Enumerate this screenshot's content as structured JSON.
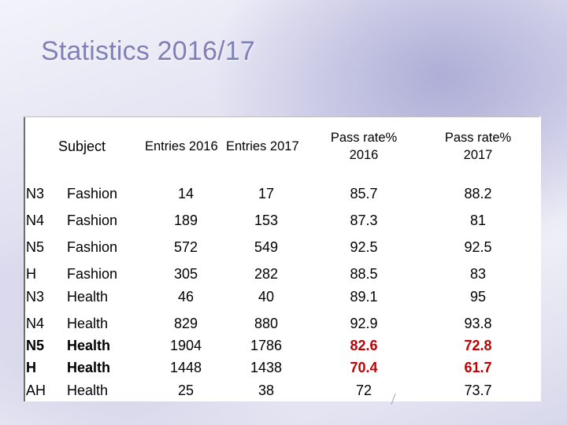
{
  "title": "Statistics 2016/17",
  "colors": {
    "title": "#8080b8",
    "highlight": "#c00000"
  },
  "table": {
    "headers": {
      "subject": "Subject",
      "entries_2016": "Entries 2016",
      "entries_2017": "Entries 2017",
      "pass_2016": "Pass rate%\n2016",
      "pass_2017": "Pass rate%\n2017"
    },
    "rows": [
      {
        "level": "N3",
        "subject": "Fashion",
        "entries_2016": "14",
        "entries_2017": "17",
        "pass_2016": "85.7",
        "pass_2017": "88.2"
      },
      {
        "level": "N4",
        "subject": "Fashion",
        "entries_2016": "189",
        "entries_2017": "153",
        "pass_2016": "87.3",
        "pass_2017": "81"
      },
      {
        "level": "N5",
        "subject": "Fashion",
        "entries_2016": "572",
        "entries_2017": "549",
        "pass_2016": "92.5",
        "pass_2017": "92.5"
      },
      {
        "level": "H\nN3",
        "subject": "Fashion\nHealth",
        "entries_2016": "305\n46",
        "entries_2017": "282\n40",
        "pass_2016": "88.5\n89.1",
        "pass_2017": "83\n95"
      },
      {
        "level": "N4",
        "subject": "Health",
        "entries_2016": "829",
        "entries_2017": "880",
        "pass_2016": "92.9",
        "pass_2017": "93.8"
      },
      {
        "level": "N5",
        "subject": "Health",
        "entries_2016": "1904",
        "entries_2017": "1786",
        "pass_2016": "82.6",
        "pass_2017": "72.8"
      },
      {
        "level": "H",
        "subject": "Health",
        "entries_2016": "1448",
        "entries_2017": "1438",
        "pass_2016": "70.4",
        "pass_2017": "61.7"
      },
      {
        "level": "AH",
        "subject": "Health",
        "entries_2016": "25",
        "entries_2017": "38",
        "pass_2016": "72",
        "pass_2017": "73.7"
      }
    ]
  }
}
